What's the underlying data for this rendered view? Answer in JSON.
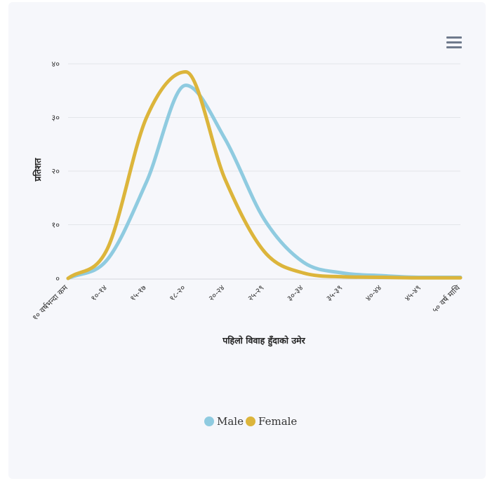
{
  "chart_data": {
    "type": "line",
    "title": "",
    "xlabel": "पहिलो विवाह हुँदाको उमेर",
    "ylabel": "प्रतिशत",
    "categories": [
      "१० वर्षभन्दा कम",
      "१०-१४",
      "१५-१७",
      "१८-२०",
      "२०-२४",
      "२५-२९",
      "३०-३४",
      "३५-३९",
      "४०-४४",
      "४५-४९",
      "५० वर्ष माथि"
    ],
    "y_ticks": [
      "०",
      "१०",
      "२०",
      "३०",
      "४०"
    ],
    "y_tick_values": [
      0,
      10,
      20,
      30,
      40
    ],
    "ylim": [
      0,
      40
    ],
    "grid": true,
    "legend_position": "bottom-center",
    "series": [
      {
        "name": "Male",
        "color": "#8fcbe0",
        "values": [
          0,
          3.5,
          18,
          36,
          26,
          11,
          3,
          1,
          0.5,
          0.2,
          0.2
        ]
      },
      {
        "name": "Female",
        "color": "#dcb53b",
        "values": [
          0,
          5.5,
          30,
          38.5,
          18.5,
          5,
          1,
          0.3,
          0.2,
          0.1,
          0.1
        ]
      }
    ]
  },
  "ui": {
    "menu_icon": "hamburger-menu-icon"
  }
}
